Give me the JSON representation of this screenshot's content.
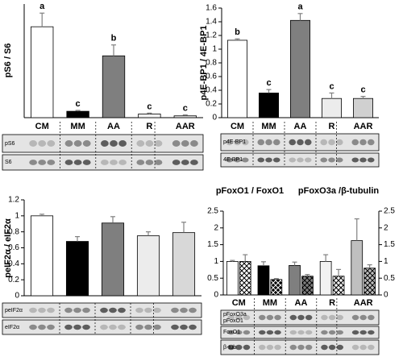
{
  "chart_data": [
    {
      "type": "bar",
      "y_label": "pS6 / S6",
      "categories": [
        "CM",
        "MM",
        "AA",
        "R",
        "AAR"
      ],
      "values": [
        1.0,
        0.07,
        0.68,
        0.04,
        0.02
      ],
      "errors": [
        0.15,
        0.01,
        0.12,
        0.01,
        0.01
      ],
      "annotations": [
        "a",
        "c",
        "b",
        "c",
        "c"
      ],
      "colors": [
        "#ffffff",
        "#000000",
        "#7f7f7f",
        "#f2f2f2",
        "#e6e6e6"
      ],
      "ylim": [
        0,
        1.25
      ],
      "blot_labels": [
        "pS6",
        "S6"
      ]
    },
    {
      "type": "bar",
      "y_label": "p4E-BP1 / 4E-BP1",
      "categories": [
        "CM",
        "MM",
        "AA",
        "R",
        "AAR"
      ],
      "values": [
        1.13,
        0.36,
        1.42,
        0.28,
        0.28
      ],
      "errors": [
        0.02,
        0.05,
        0.1,
        0.08,
        0.03
      ],
      "annotations": [
        "b",
        "c",
        "a",
        "c",
        "c"
      ],
      "colors": [
        "#ffffff",
        "#000000",
        "#7f7f7f",
        "#ececec",
        "#d0d0d0"
      ],
      "ylim": [
        0,
        1.6
      ],
      "yticks": [
        0,
        0.2,
        0.4,
        0.6,
        0.8,
        1,
        1.2,
        1.4,
        1.6
      ],
      "blot_labels": [
        "p4E-BP1",
        "4E-BP1"
      ]
    },
    {
      "type": "bar",
      "y_label": "peIF2α / eIF2α",
      "values": [
        1.0,
        0.68,
        0.91,
        0.75,
        0.79
      ],
      "errors": [
        0.02,
        0.06,
        0.08,
        0.05,
        0.13
      ],
      "colors": [
        "#ffffff",
        "#000000",
        "#7f7f7f",
        "#ececec",
        "#d8d8d8"
      ],
      "ylim": [
        0,
        1.2
      ],
      "yticks": [
        0,
        0.2,
        0.4,
        0.6,
        0.8,
        1,
        1.2
      ],
      "blot_labels": [
        "peIF2α",
        "eIF2α"
      ]
    },
    {
      "type": "bar",
      "categories": [
        "CM",
        "MM",
        "AA",
        "R",
        "AAR"
      ],
      "series": [
        {
          "name": "pFoxO1 / FoxO1",
          "values": [
            1.0,
            0.87,
            0.88,
            1.0,
            1.62
          ],
          "errors": [
            0.03,
            0.12,
            0.1,
            0.2,
            0.65
          ],
          "colors": [
            "#ffffff",
            "#000000",
            "#7f7f7f",
            "#f2f2f2",
            "#bfbfbf"
          ]
        },
        {
          "name": "pFoxO3a /β-tubulin",
          "axis": "y2",
          "hatch": true,
          "values": [
            1.0,
            0.46,
            0.56,
            0.56,
            0.8
          ],
          "errors": [
            0.2,
            0.03,
            0.05,
            0.2,
            0.1
          ],
          "colors": [
            "#ffffff",
            "#000000",
            "#7f7f7f",
            "#f2f2f2",
            "#bfbfbf"
          ]
        }
      ],
      "ylim": [
        0,
        2.5
      ],
      "yticks": [
        0,
        0.5,
        1,
        1.5,
        2,
        2.5
      ],
      "y2lim": [
        0,
        2.5
      ],
      "y2ticks": [
        0,
        0.5,
        1,
        1.5,
        2,
        2.5
      ],
      "blot_labels": [
        "pFoxO3a",
        "pFoxO1",
        "FoxO1",
        "β-tub"
      ]
    }
  ]
}
